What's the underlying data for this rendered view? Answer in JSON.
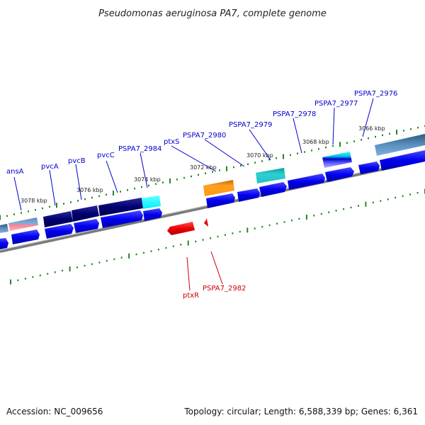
{
  "title": "Pseudomonas aeruginosa PA7, complete genome",
  "footer": {
    "accession": "Accession: NC_009656",
    "topology": "Topology: circular; Length: 6,588,339 bp; Genes: 6,361"
  },
  "colors": {
    "forward_label": "#0000cc",
    "reverse_label": "#cc0000",
    "backbone": "#888888",
    "dots": "#228822"
  },
  "ticks": [
    "3078 kbp",
    "3076 kbp",
    "3074 kbp",
    "3072 kbp",
    "3070 kbp",
    "3068 kbp",
    "3066 kbp"
  ],
  "forward_labels": [
    "ansA",
    "pvcA",
    "pvcB",
    "pvcC",
    "PSPA7_2984",
    "ptxS",
    "PSPA7_2980",
    "PSPA7_2979",
    "PSPA7_2978",
    "PSPA7_2977",
    "PSPA7_2976"
  ],
  "reverse_labels": [
    "ptxR",
    "PSPA7_2982"
  ]
}
